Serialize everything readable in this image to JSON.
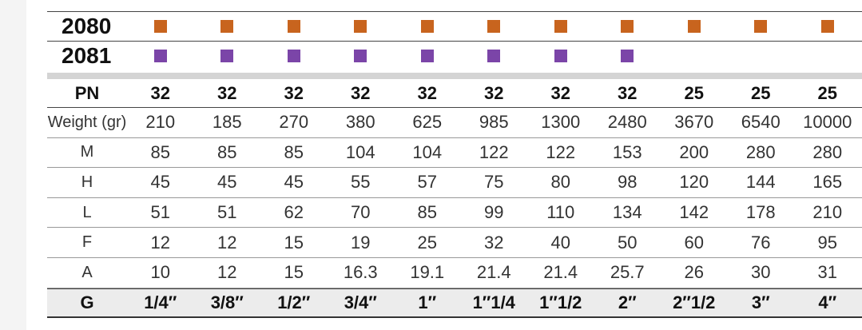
{
  "colors": {
    "model_2080": "#c8641e",
    "model_2081": "#7b45a8"
  },
  "models": [
    {
      "name": "2080",
      "availability": [
        true,
        true,
        true,
        true,
        true,
        true,
        true,
        true,
        true,
        true,
        true
      ]
    },
    {
      "name": "2081",
      "availability": [
        true,
        true,
        true,
        true,
        true,
        true,
        true,
        true,
        false,
        false,
        false
      ]
    }
  ],
  "pn": {
    "label": "PN",
    "values": [
      "32",
      "32",
      "32",
      "32",
      "32",
      "32",
      "32",
      "32",
      "25",
      "25",
      "25"
    ]
  },
  "rows": [
    {
      "label": "Weight (gr)",
      "values": [
        "210",
        "185",
        "270",
        "380",
        "625",
        "985",
        "1300",
        "2480",
        "3670",
        "6540",
        "10000"
      ]
    },
    {
      "label": "M",
      "values": [
        "85",
        "85",
        "85",
        "104",
        "104",
        "122",
        "122",
        "153",
        "200",
        "280",
        "280"
      ]
    },
    {
      "label": "H",
      "values": [
        "45",
        "45",
        "45",
        "55",
        "57",
        "75",
        "80",
        "98",
        "120",
        "144",
        "165"
      ]
    },
    {
      "label": "L",
      "values": [
        "51",
        "51",
        "62",
        "70",
        "85",
        "99",
        "110",
        "134",
        "142",
        "178",
        "210"
      ]
    },
    {
      "label": "F",
      "values": [
        "12",
        "12",
        "15",
        "19",
        "25",
        "32",
        "40",
        "50",
        "60",
        "76",
        "95"
      ]
    },
    {
      "label": "A",
      "values": [
        "10",
        "12",
        "15",
        "16.3",
        "19.1",
        "21.4",
        "21.4",
        "25.7",
        "26",
        "30",
        "31"
      ]
    }
  ],
  "g": {
    "label": "G",
    "values": [
      "1/4″",
      "3/8″",
      "1/2″",
      "3/4″",
      "1″",
      "1″1/4",
      "1″1/2",
      "2″",
      "2″1/2",
      "3″",
      "4″"
    ]
  }
}
